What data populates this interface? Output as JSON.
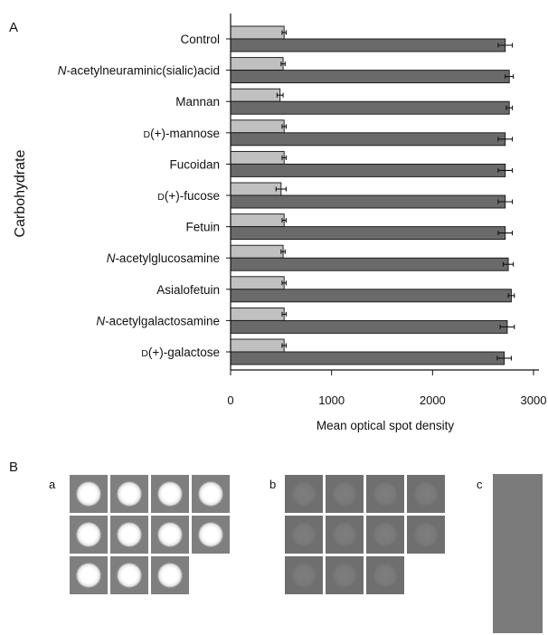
{
  "panel_A_label": "A",
  "panel_B_label": "B",
  "chart_data": {
    "type": "bar",
    "orientation": "horizontal",
    "ylabel": "Carbohydrate",
    "xlabel": "Mean optical spot density",
    "xlim": [
      0,
      3000
    ],
    "xticks": [
      0,
      1000,
      2000,
      3000
    ],
    "xtick_labels": [
      "0",
      "1000",
      "2000",
      "3000"
    ],
    "grid": false,
    "categories": [
      {
        "prefix": "",
        "italic": "",
        "rest": "Control"
      },
      {
        "prefix": "",
        "italic": "N",
        "rest": "-acetylneuraminic(sialic)acid"
      },
      {
        "prefix": "",
        "italic": "",
        "rest": "Mannan"
      },
      {
        "prefix": "D",
        "italic": "",
        "rest": "(+)-mannose"
      },
      {
        "prefix": "",
        "italic": "",
        "rest": "Fucoidan"
      },
      {
        "prefix": "D",
        "italic": "",
        "rest": "(+)-fucose"
      },
      {
        "prefix": "",
        "italic": "",
        "rest": "Fetuin"
      },
      {
        "prefix": "",
        "italic": "N",
        "rest": "-acetylglucosamine"
      },
      {
        "prefix": "",
        "italic": "",
        "rest": "Asialofetuin"
      },
      {
        "prefix": "",
        "italic": "N",
        "rest": "-acetylgalactosamine"
      },
      {
        "prefix": "D",
        "italic": "",
        "rest": "(+)-galactose"
      }
    ],
    "series": [
      {
        "color": "#c0c0c0",
        "values": [
          530,
          520,
          490,
          530,
          530,
          500,
          530,
          520,
          530,
          530,
          530
        ],
        "errors": [
          20,
          20,
          30,
          20,
          20,
          50,
          20,
          20,
          20,
          20,
          20
        ]
      },
      {
        "color": "#6a6a6a",
        "values": [
          2720,
          2760,
          2760,
          2720,
          2720,
          2720,
          2720,
          2750,
          2780,
          2740,
          2710
        ],
        "errors": [
          70,
          40,
          30,
          70,
          70,
          70,
          70,
          50,
          30,
          70,
          70
        ]
      }
    ]
  },
  "panel_B": {
    "a": {
      "label": "a",
      "rows": [
        4,
        4,
        3
      ],
      "tile_color": "#7f7f7f",
      "spot_color": "#ffffff"
    },
    "b": {
      "label": "b",
      "rows": [
        4,
        4,
        3
      ],
      "tile_color": "#6f6f6f",
      "spot_color": "#7b7b7b"
    },
    "c": {
      "label": "c",
      "strip_color": "#7b7b7b"
    }
  }
}
